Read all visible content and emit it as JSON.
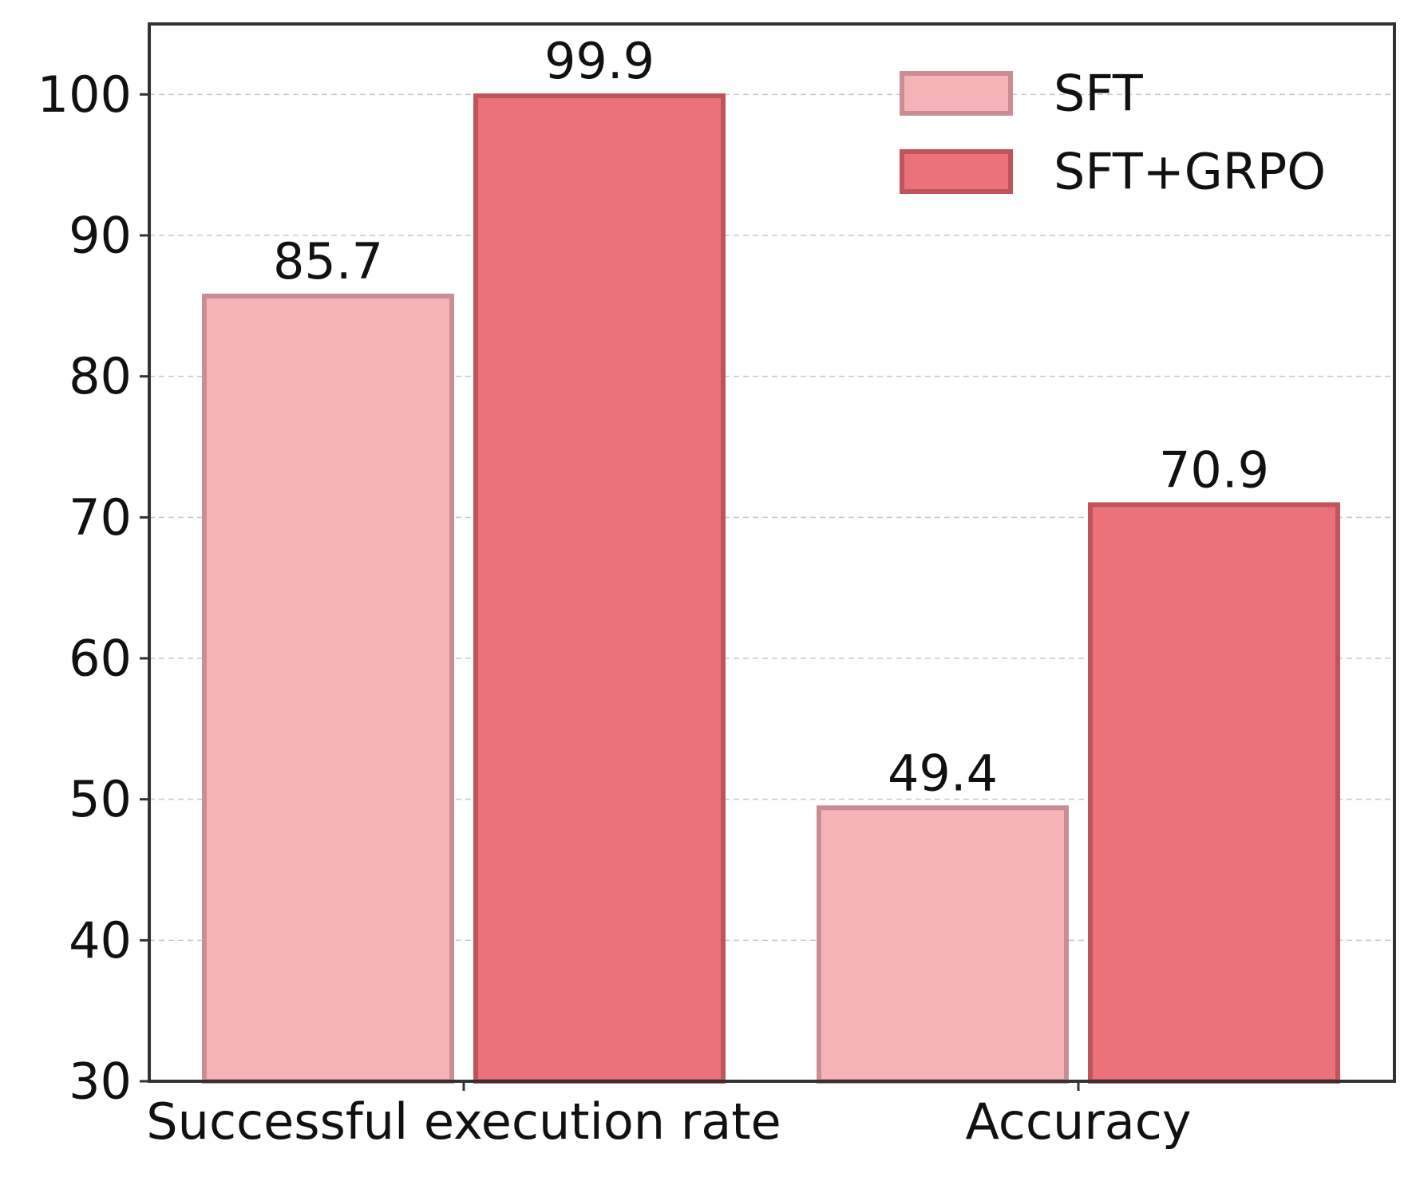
{
  "chart_data": {
    "type": "bar",
    "title": "",
    "xlabel": "",
    "ylabel": "",
    "categories": [
      "Successful execution rate",
      "Accuracy"
    ],
    "series": [
      {
        "name": "SFT",
        "values": [
          85.7,
          49.4
        ],
        "value_labels": [
          "85.7",
          "49.4"
        ],
        "fill": "#f5b3b7",
        "edge": "#c98e93"
      },
      {
        "name": "SFT+GRPO",
        "values": [
          99.9,
          70.9
        ],
        "value_labels": [
          "99.9",
          "70.9"
        ],
        "fill": "#ec7279",
        "edge": "#c0545d"
      }
    ],
    "ylim": [
      30,
      105
    ],
    "yticks": [
      30,
      40,
      50,
      60,
      70,
      80,
      90,
      100
    ],
    "ytick_labels": [
      "30",
      "40",
      "50",
      "60",
      "70",
      "80",
      "90",
      "100"
    ],
    "grid": true,
    "legend": "top-right"
  }
}
